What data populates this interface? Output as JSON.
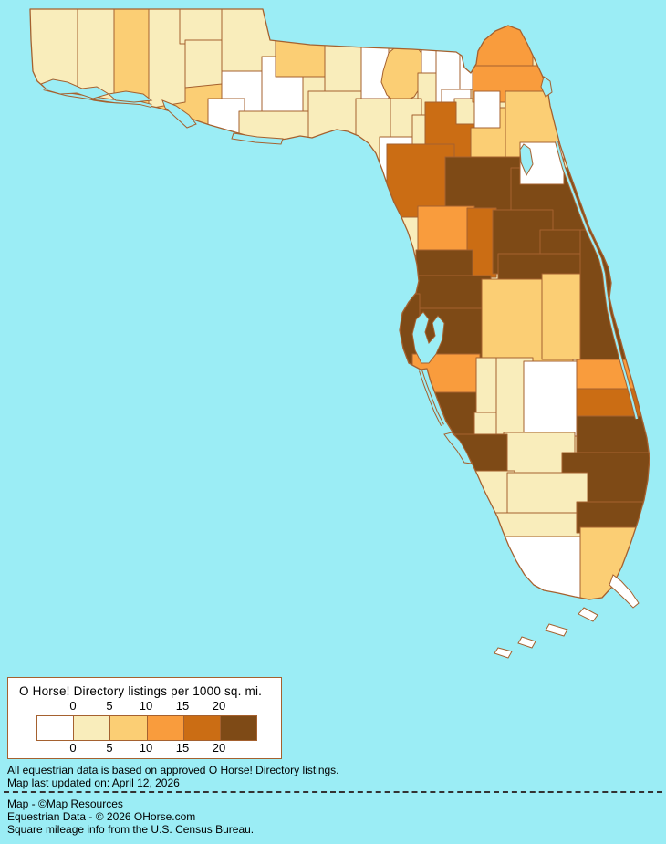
{
  "legend": {
    "title": "O Horse! Directory listings per 1000 sq. mi.",
    "ticks": [
      "0",
      "5",
      "10",
      "15",
      "20"
    ],
    "bucket_colors": [
      "#ffffff",
      "#f9edbb",
      "#fbce74",
      "#f99c3d",
      "#cb6d14",
      "#7e4a16"
    ],
    "bucket_ranges": [
      "0",
      "0-5",
      "5-10",
      "10-15",
      "15-20",
      "20+"
    ]
  },
  "footer": {
    "notes": [
      "All equestrian data is based on approved O Horse! Directory listings.",
      "Map last updated on: April 12, 2026"
    ],
    "attribution": [
      "Map - ©Map Resources",
      "Equestrian Data - © 2026 OHorse.com",
      "Square mileage info from the U.S. Census Bureau."
    ]
  },
  "map": {
    "region": "Florida counties choropleth",
    "water_color": "#9bedf5",
    "border_color": "#a5612f",
    "counties": [
      {
        "n": "escambia",
        "b": 1
      },
      {
        "n": "santa_rosa",
        "b": 1
      },
      {
        "n": "okaloosa",
        "b": 2
      },
      {
        "n": "walton",
        "b": 1
      },
      {
        "n": "holmes",
        "b": 1
      },
      {
        "n": "washington",
        "b": 1
      },
      {
        "n": "bay",
        "b": 2
      },
      {
        "n": "jackson",
        "b": 1
      },
      {
        "n": "calhoun",
        "b": 0
      },
      {
        "n": "gulf",
        "b": 0
      },
      {
        "n": "liberty",
        "b": 0
      },
      {
        "n": "franklin",
        "b": 1
      },
      {
        "n": "gadsden",
        "b": 2
      },
      {
        "n": "leon",
        "b": 1
      },
      {
        "n": "wakulla",
        "b": 1
      },
      {
        "n": "jefferson",
        "b": 0
      },
      {
        "n": "madison",
        "b": 2
      },
      {
        "n": "taylor",
        "b": 1
      },
      {
        "n": "hamilton",
        "b": 0
      },
      {
        "n": "suwannee",
        "b": 1
      },
      {
        "n": "lafayette",
        "b": 1
      },
      {
        "n": "dixie",
        "b": 0
      },
      {
        "n": "columbia",
        "b": 0
      },
      {
        "n": "baker",
        "b": 0
      },
      {
        "n": "union",
        "b": 0
      },
      {
        "n": "bradford",
        "b": 1
      },
      {
        "n": "gilchrist",
        "b": 1
      },
      {
        "n": "alachua",
        "b": 4
      },
      {
        "n": "levy",
        "b": 4
      },
      {
        "n": "nassau",
        "b": 3
      },
      {
        "n": "duval",
        "b": 3
      },
      {
        "n": "clay",
        "b": 0
      },
      {
        "n": "putnam",
        "b": 2
      },
      {
        "n": "st_johns",
        "b": 2
      },
      {
        "n": "marion",
        "b": 5
      },
      {
        "n": "volusia",
        "b": 5
      },
      {
        "n": "flagler",
        "b": 0
      },
      {
        "n": "citrus",
        "b": 3
      },
      {
        "n": "sumter",
        "b": 4
      },
      {
        "n": "lake",
        "b": 5
      },
      {
        "n": "hernando",
        "b": 5
      },
      {
        "n": "pasco",
        "b": 5
      },
      {
        "n": "hillsborough",
        "b": 5
      },
      {
        "n": "pinellas",
        "b": 5
      },
      {
        "n": "seminole",
        "b": 5
      },
      {
        "n": "orange",
        "b": 5
      },
      {
        "n": "polk",
        "b": 2
      },
      {
        "n": "osceola",
        "b": 2
      },
      {
        "n": "brevard",
        "b": 5
      },
      {
        "n": "manatee",
        "b": 3
      },
      {
        "n": "sarasota",
        "b": 5
      },
      {
        "n": "hardee",
        "b": 1
      },
      {
        "n": "desoto",
        "b": 1
      },
      {
        "n": "highlands",
        "b": 1
      },
      {
        "n": "okeechobee",
        "b": 0
      },
      {
        "n": "glades",
        "b": 1
      },
      {
        "n": "charlotte",
        "b": 5
      },
      {
        "n": "lee",
        "b": 1
      },
      {
        "n": "indian_river",
        "b": 3
      },
      {
        "n": "st_lucie",
        "b": 4
      },
      {
        "n": "martin",
        "b": 5
      },
      {
        "n": "palm_beach",
        "b": 5
      },
      {
        "n": "hendry",
        "b": 1
      },
      {
        "n": "collier",
        "b": 1
      },
      {
        "n": "broward",
        "b": 5
      },
      {
        "n": "monroe",
        "b": 0
      },
      {
        "n": "miami_dade",
        "b": 2
      }
    ]
  }
}
